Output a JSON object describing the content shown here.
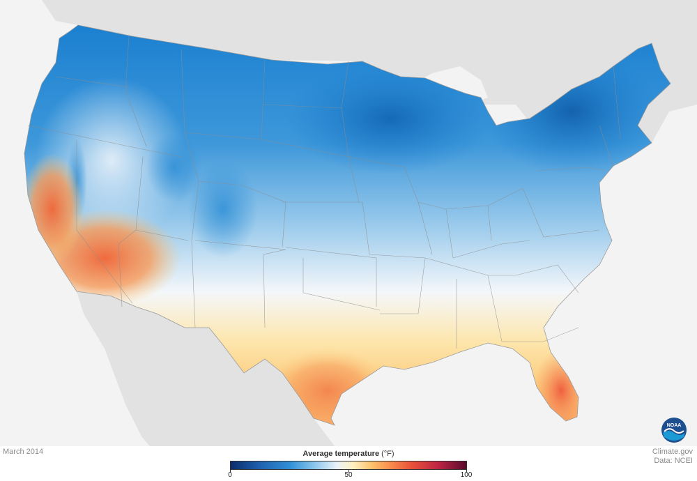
{
  "map": {
    "date": "March 2014",
    "credit_line1": "Climate.gov",
    "credit_line2": "Data: NCEI",
    "logo_text": "NOAA"
  },
  "legend": {
    "title": "Average temperature",
    "unit": "(°F)",
    "min": 0,
    "max": 100,
    "ticks": [
      "0",
      "50",
      "100"
    ],
    "color_stops": [
      {
        "value": 0,
        "color": "#0a2c6b"
      },
      {
        "value": 12,
        "color": "#1f5fad"
      },
      {
        "value": 25,
        "color": "#2f8fd6"
      },
      {
        "value": 35,
        "color": "#86c3ea"
      },
      {
        "value": 45,
        "color": "#e9f2f9"
      },
      {
        "value": 52,
        "color": "#fff0c2"
      },
      {
        "value": 60,
        "color": "#fdc16b"
      },
      {
        "value": 68,
        "color": "#f98b4c"
      },
      {
        "value": 77,
        "color": "#e8503a"
      },
      {
        "value": 88,
        "color": "#bf2543"
      },
      {
        "value": 100,
        "color": "#5a0a2e"
      }
    ]
  },
  "colors": {
    "cold": "#1a7fd0",
    "deep_cold": "#1462ad",
    "neutral": "#f4f7fa",
    "warm": "#fcc879",
    "hot": "#f26d47",
    "land_outside": "#e0e0e0",
    "water": "#f3f3f3"
  }
}
